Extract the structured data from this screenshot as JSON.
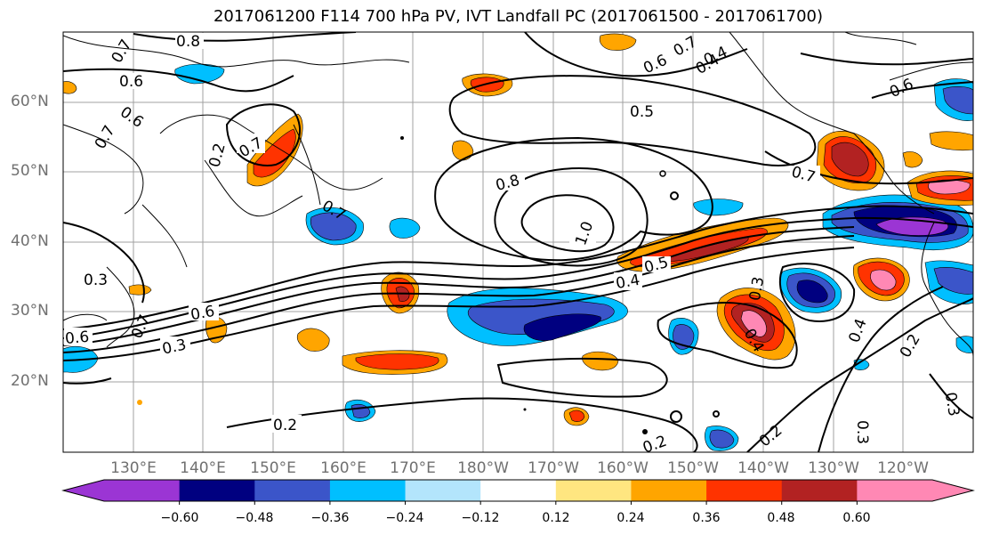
{
  "title": "2017061200 F114 700 hPa PV, IVT Landfall PC (2017061500 - 2017061700)",
  "lat_labels": [
    "60°N",
    "50°N",
    "40°N",
    "30°N",
    "20°N"
  ],
  "lon_labels": [
    "130°E",
    "140°E",
    "150°E",
    "160°E",
    "170°E",
    "180°W",
    "170°W",
    "160°W",
    "150°W",
    "140°W",
    "130°W",
    "120°W"
  ],
  "colorbar": {
    "ticks": [
      "−0.60",
      "−0.48",
      "−0.36",
      "−0.24",
      "−0.12",
      "0.12",
      "0.24",
      "0.36",
      "0.48",
      "0.60"
    ],
    "colors": [
      "#9b35d4",
      "#000080",
      "#3b55c9",
      "#00bfff",
      "#b3e5fc",
      "#ffffff",
      "#ffe680",
      "#ffa500",
      "#ff3300",
      "#b22222",
      "#ff88b4"
    ]
  },
  "contour_labels": [
    "0.8",
    "0.6",
    "0.7",
    "0.6",
    "0.7",
    "0.7",
    "0.4",
    "0.5",
    "0.8",
    "1.0",
    "0.7",
    "0.7",
    "0.5",
    "0.4",
    "0.3",
    "0.6",
    "0.3",
    "0.6",
    "0.3",
    "0.7",
    "0.7",
    "0.6",
    "0.4",
    "0.2",
    "0.2",
    "0.2",
    "0.4",
    "0.3",
    "0.3",
    "0.2",
    "0.2",
    "0.6",
    "0.4"
  ]
}
